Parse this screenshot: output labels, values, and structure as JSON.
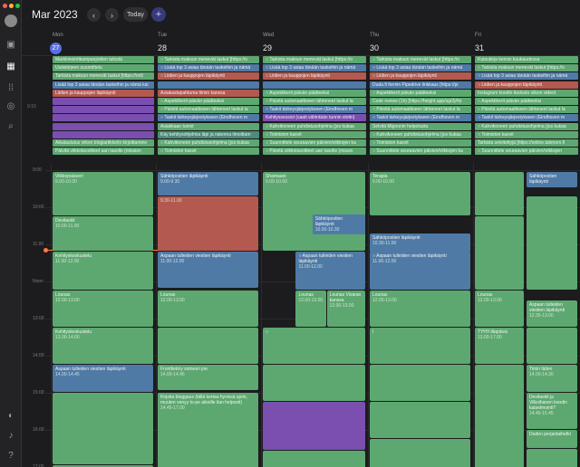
{
  "header": {
    "month": "Mar 2023",
    "today_label": "Today",
    "prev": "‹",
    "next": "›",
    "add": "+"
  },
  "colors": {
    "green": "#5da870",
    "blue": "#4f7aa6",
    "red": "#b4594f",
    "purple": "#7a4fb0",
    "grey": "#5c6060",
    "teal": "#4d8b7a"
  },
  "sidebar": {
    "icons": [
      "inbox-icon",
      "calendar-icon",
      "apps-icon",
      "target-icon",
      "search-icon",
      "moon-icon",
      "bell-icon",
      "help-icon"
    ]
  },
  "days": [
    {
      "name": "Mon",
      "num": "27",
      "today": true
    },
    {
      "name": "Tue",
      "num": "28",
      "today": false
    },
    {
      "name": "Wed",
      "num": "29",
      "today": false
    },
    {
      "name": "Thu",
      "num": "30",
      "today": false
    },
    {
      "name": "Fri",
      "num": "31",
      "today": false
    }
  ],
  "allday_time": "9:15",
  "allday": [
    [
      {
        "t": "Markkinointikampanjoiden tulostä",
        "c": "green"
      },
      {
        "t": "Uutiskirjeen suunnittelu",
        "c": "green"
      },
      {
        "t": "Tarkista maksun menevät laskut [https://onli",
        "c": "green"
      },
      {
        "t": "Lisää top 3 asiaa tänään taskeihin ja nämä kai",
        "c": "blue"
      },
      {
        "t": "Liidien ja kauppojen läpikäynti",
        "c": "red"
      },
      {
        "t": "",
        "c": "purple"
      },
      {
        "t": "",
        "c": "purple"
      },
      {
        "t": "",
        "c": "purple"
      },
      {
        "t": "",
        "c": "purple"
      },
      {
        "t": "",
        "c": "purple"
      },
      {
        "t": "Aikataulutus viikon blogiartikkelin kirjoittamine",
        "c": "green"
      },
      {
        "t": "Päivitä viikkotavoitteet aan tasolle (mission",
        "c": "green"
      }
    ],
    [
      {
        "t": "○ Tarkista maksun menevät laskut [https://o",
        "c": "green"
      },
      {
        "t": "○ Lisää top 3 asiaa tänään taskeihin ja nämä",
        "c": "blue"
      },
      {
        "t": "○ Liidien ja kauppojen läpikäynti",
        "c": "red"
      },
      {
        "t": "",
        "c": "blue"
      },
      {
        "t": "Asiakastapahtuma tiimin kanssa",
        "c": "red"
      },
      {
        "t": "○ Aspektikerit päivän päätteeksi",
        "c": "green"
      },
      {
        "t": "○ Päivitä automaattiseen lähteneet laskut la",
        "c": "green"
      },
      {
        "t": "○ Taskit tärkeysjärjestykseen (Eindhoven m",
        "c": "blue"
      },
      {
        "t": "Asiakkaan tunnit",
        "c": "green"
      },
      {
        "t": "Käy kehitysohjelmia läpi ja rakenna ilmoittam",
        "c": "teal"
      },
      {
        "t": "○ Kahvikoneen puhdistusohjelma (jos kukaa",
        "c": "green"
      },
      {
        "t": "○ Toimiston kasvit",
        "c": "green"
      }
    ],
    [
      {
        "t": "○ Tarkista maksun menevät laskut [https://o",
        "c": "green"
      },
      {
        "t": "○ Lisää top 3 asiaa tänään taskeihin ja nämä",
        "c": "blue"
      },
      {
        "t": "○ Liidien ja kauppojen läpikäynti",
        "c": "red"
      },
      {
        "t": "",
        "c": "blue"
      },
      {
        "t": "○ Aspektikerit päivän päätteeksi",
        "c": "green"
      },
      {
        "t": "○ Päivitä automaattiseen lähteneet laskut la",
        "c": "green"
      },
      {
        "t": "○ Taskit tärkeysjärjestykseen (Eindhoven m",
        "c": "blue"
      },
      {
        "t": "Kehityssessiot (vaati vähintään tunnin slotin)",
        "c": "purple"
      },
      {
        "t": "○ Kahvikoneen puhdistusohjelma (jos kukaa",
        "c": "green"
      },
      {
        "t": "○ Toimiston kasvit",
        "c": "green"
      },
      {
        "t": "○ Suunnittele seuraavien päivien/viikkojen ka",
        "c": "green"
      },
      {
        "t": "○ Päivitä viikkotavoitteet aan tasolle (missio",
        "c": "green"
      }
    ],
    [
      {
        "t": "○ Tarkista maksun menevät laskut [https://o",
        "c": "green"
      },
      {
        "t": "○ Lisää top 3 asiaa tänään taskeihin ja nämä",
        "c": "blue"
      },
      {
        "t": "○ Liidien ja kauppojen läpikäynti",
        "c": "red"
      },
      {
        "t": "Duda.fi formin Pipedrive linkkaus [https://pi",
        "c": "blue"
      },
      {
        "t": "○ Aspektikerit päivän päätteeksi",
        "c": "green"
      },
      {
        "t": "Code review (1h) [https://height.app/sgr2j/#p",
        "c": "green"
      },
      {
        "t": "○ Päivitä automaattiseen lähteneet laskut la",
        "c": "green"
      },
      {
        "t": "○ Taskit tärkeysjärjestykseen (Eindhoven m",
        "c": "blue"
      },
      {
        "t": "Selvitä Mignonin helpotusta",
        "c": "green"
      },
      {
        "t": "○ Kahvikoneen puhdistusohjelma (jos kukaa",
        "c": "green"
      },
      {
        "t": "○ Toimiston kasvit",
        "c": "green"
      },
      {
        "t": "○ Suunnittele seuraavien päivien/viikkojen ka",
        "c": "green"
      }
    ],
    [
      {
        "t": "Kutsukirja kerran kuukaudessa",
        "c": "green"
      },
      {
        "t": "○ Tarkista maksun menevät laskut [https://o",
        "c": "green"
      },
      {
        "t": "○ Lisää top 3 asiaa tänään taskeihin ja nämä",
        "c": "blue"
      },
      {
        "t": "○ Liidien ja kauppojen läpikäynti",
        "c": "red"
      },
      {
        "t": "Instagram koodin tiedosto viikon videot",
        "c": "green"
      },
      {
        "t": "○ Aspektikerit päivän päätteeksi",
        "c": "green"
      },
      {
        "t": "○ Päivitä automaattiseen lähteneet laskut la",
        "c": "green"
      },
      {
        "t": "○ Taskit tärkeysjärjestykseen (Eindhoven m",
        "c": "blue"
      },
      {
        "t": "○ Kahvikoneen puhdistusohjelma (jos kukaa",
        "c": "green"
      },
      {
        "t": "○ Toimiston kasvit",
        "c": "green"
      },
      {
        "t": "Tarkista selvitettyjä [https://online.talenom.fi",
        "c": "green"
      },
      {
        "t": "○ Suunnittele seuraavien päivien/viikkojen",
        "c": "green"
      }
    ]
  ],
  "hours": [
    "9:00",
    "10:00",
    "11:00",
    "Noon",
    "13:00",
    "14:00",
    "15:00",
    "16:00",
    "17:00"
  ],
  "events": [
    {
      "d": 0,
      "h": 0.05,
      "len": 1.2,
      "t": "Viikkopalaveri",
      "s": "9.00-10.00",
      "c": "green"
    },
    {
      "d": 0,
      "h": 1.25,
      "len": 0.95,
      "t": "Devitaskit",
      "s": "10.00-11.00",
      "c": "green"
    },
    {
      "d": 0,
      "h": 2.2,
      "len": 1.05,
      "t": "Kehityskeskustelu",
      "s": "11.00-12.00",
      "c": "green"
    },
    {
      "d": 0,
      "h": 3.25,
      "len": 1.0,
      "t": "Lounas",
      "s": "12.00-13.00",
      "c": "green"
    },
    {
      "d": 0,
      "h": 4.25,
      "len": 1.0,
      "t": "Kehityskeskustelu",
      "s": "13.00-14.00",
      "c": "green"
    },
    {
      "d": 0,
      "h": 5.25,
      "len": 0.75,
      "t": "Aspaan tulleiden viestien läpikäynti",
      "s": "14.00-14.45",
      "c": "blue"
    },
    {
      "d": 0,
      "h": 6.0,
      "len": 1.95,
      "t": "",
      "s": "",
      "c": "green"
    },
    {
      "d": 0,
      "h": 7.95,
      "len": 0.6,
      "t": "Sopimuslaskutukset (seuraava menemään viimeistään 28.3.)",
      "s": "16.00-17.00",
      "c": "green"
    },
    {
      "d": 1,
      "h": 0.05,
      "len": 0.65,
      "t": "Sähköpostien läpikäynti",
      "s": "9.00-9.30",
      "c": "blue"
    },
    {
      "d": 1,
      "h": 0.7,
      "len": 1.5,
      "t": "",
      "s": "9.30-11.00",
      "c": "red"
    },
    {
      "d": 1,
      "h": 2.2,
      "len": 1.0,
      "t": "Aspaan tulleiden viestien läpikäynti",
      "s": "11.00-12.00",
      "c": "blue"
    },
    {
      "d": 1,
      "h": 3.25,
      "len": 1.0,
      "t": "Lounas",
      "s": "12.00-13.00",
      "c": "green"
    },
    {
      "d": 1,
      "h": 4.25,
      "len": 1.0,
      "t": "",
      "s": "",
      "c": "green"
    },
    {
      "d": 1,
      "h": 5.25,
      "len": 0.7,
      "t": "Fronttiekiry someen jne.",
      "s": "14.00-14.45",
      "c": "green"
    },
    {
      "d": 1,
      "h": 6.0,
      "len": 2.6,
      "t": "Kirjoita bloggaus (tällä kertaa hyvissä ajoin, muuten venyy to-pe aikeille ilan helposti)",
      "s": "14.45-17.00",
      "c": "green"
    },
    {
      "d": 2,
      "h": 0.05,
      "len": 2.15,
      "t": "Shamaani",
      "s": "9.00-10.00",
      "c": "green"
    },
    {
      "d": 2,
      "h": 1.2,
      "len": 0.55,
      "t": "Sähköpostien läpikäynti",
      "s": "10.00-10.30",
      "c": "blue",
      "left": 0.48
    },
    {
      "d": 2,
      "h": 2.2,
      "len": 1.05,
      "t": "○ Aspaan tulleiden viestien läpikäynti",
      "s": "11.00-12.00",
      "c": "blue",
      "left": 0.32
    },
    {
      "d": 2,
      "h": 3.25,
      "len": 1.0,
      "t": "Lounas",
      "s": "12.00-13.00",
      "c": "green",
      "left": 0.32,
      "w": 0.3
    },
    {
      "d": 2,
      "h": 3.25,
      "len": 1.0,
      "t": "Lounas Vivaran kanssa",
      "s": "12.00-13.00",
      "c": "green",
      "left": 0.62
    },
    {
      "d": 2,
      "h": 4.25,
      "len": 1.0,
      "t": "○",
      "s": "",
      "c": "green"
    },
    {
      "d": 2,
      "h": 5.25,
      "len": 1.0,
      "t": "",
      "s": "",
      "c": "green"
    },
    {
      "d": 2,
      "h": 6.25,
      "len": 1.3,
      "t": "",
      "s": "",
      "c": "purple"
    },
    {
      "d": 2,
      "h": 7.55,
      "len": 1.0,
      "t": "",
      "s": "",
      "c": "green"
    },
    {
      "d": 3,
      "h": 0.05,
      "len": 1.2,
      "t": "Terapia",
      "s": "9.00-10.00",
      "c": "green"
    },
    {
      "d": 3,
      "h": 1.7,
      "len": 0.55,
      "t": "Sähköpostien läpikäynti",
      "s": "10.30-11.00",
      "c": "blue"
    },
    {
      "d": 3,
      "h": 2.2,
      "len": 1.05,
      "t": "○ Aspaan tulleiden viestien läpikäynti",
      "s": "11.00-12.00",
      "c": "blue"
    },
    {
      "d": 3,
      "h": 3.25,
      "len": 1.0,
      "t": "Lounas",
      "s": "12.00-13.00",
      "c": "green"
    },
    {
      "d": 3,
      "h": 4.25,
      "len": 1.0,
      "t": "l",
      "s": "",
      "c": "green"
    },
    {
      "d": 3,
      "h": 5.25,
      "len": 1.0,
      "t": "",
      "s": "",
      "c": "green"
    },
    {
      "d": 3,
      "h": 6.25,
      "len": 1.0,
      "t": "",
      "s": "",
      "c": "green"
    },
    {
      "d": 3,
      "h": 7.25,
      "len": 1.3,
      "t": "",
      "s": "",
      "c": "green"
    },
    {
      "d": 4,
      "h": 0.05,
      "len": 1.2,
      "t": "",
      "s": "",
      "c": "green",
      "w": 0.48
    },
    {
      "d": 4,
      "h": 0.05,
      "len": 0.45,
      "t": "Sähköpostien läpikäynti",
      "s": "",
      "c": "blue",
      "left": 0.5
    },
    {
      "d": 4,
      "h": 0.7,
      "len": 2.55,
      "t": "",
      "s": "",
      "c": "green",
      "left": 0.5
    },
    {
      "d": 4,
      "h": 1.25,
      "len": 2.0,
      "t": "",
      "s": "",
      "c": "green",
      "w": 0.48
    },
    {
      "d": 4,
      "h": 3.25,
      "len": 1.0,
      "t": "Lounas",
      "s": "12.00-13.00",
      "c": "green",
      "w": 0.48
    },
    {
      "d": 4,
      "h": 3.5,
      "len": 0.75,
      "t": "Aspaan tulleiden viestien läpikäynti",
      "s": "12.30-13.00",
      "c": "green",
      "left": 0.5
    },
    {
      "d": 4,
      "h": 4.25,
      "len": 1.0,
      "t": "TYHY-iltapäivä",
      "s": "13.00-17.00",
      "c": "green",
      "w": 0.48
    },
    {
      "d": 4,
      "h": 4.25,
      "len": 1.0,
      "t": "",
      "s": "",
      "c": "green",
      "left": 0.5
    },
    {
      "d": 4,
      "h": 5.25,
      "len": 0.75,
      "t": "Timin tiiden",
      "s": "14.00-14.30",
      "c": "green",
      "left": 0.5
    },
    {
      "d": 4,
      "h": 5.25,
      "len": 3.3,
      "t": "",
      "s": "",
      "c": "green",
      "w": 0.48
    },
    {
      "d": 4,
      "h": 6.0,
      "len": 1.0,
      "t": "Devitaskit ja Vilkoihanen koodin katselmointi?",
      "s": "14.45-15.45",
      "c": "green",
      "left": 0.5
    },
    {
      "d": 4,
      "h": 7.0,
      "len": 0.5,
      "t": "Duden perjantaihetki",
      "s": "",
      "c": "green",
      "left": 0.5
    },
    {
      "d": 4,
      "h": 7.5,
      "len": 1.0,
      "t": "",
      "s": "",
      "c": "green",
      "left": 0.5
    }
  ]
}
